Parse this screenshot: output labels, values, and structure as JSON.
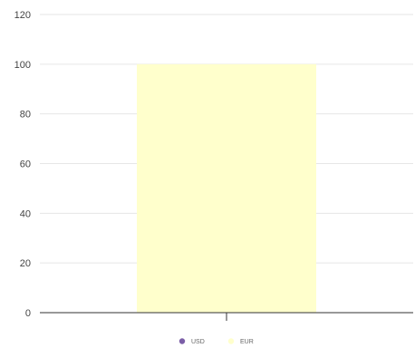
{
  "chart_data": {
    "type": "bar",
    "categories": [
      ""
    ],
    "series": [
      {
        "name": "USD",
        "values": [
          0
        ],
        "color": "#7b5ea7"
      },
      {
        "name": "EUR",
        "values": [
          100
        ],
        "color": "#ffffcc"
      }
    ],
    "ylim": [
      0,
      120
    ],
    "yticks": [
      0,
      20,
      40,
      60,
      80,
      100,
      120
    ],
    "grid": true,
    "legend_position": "bottom"
  }
}
